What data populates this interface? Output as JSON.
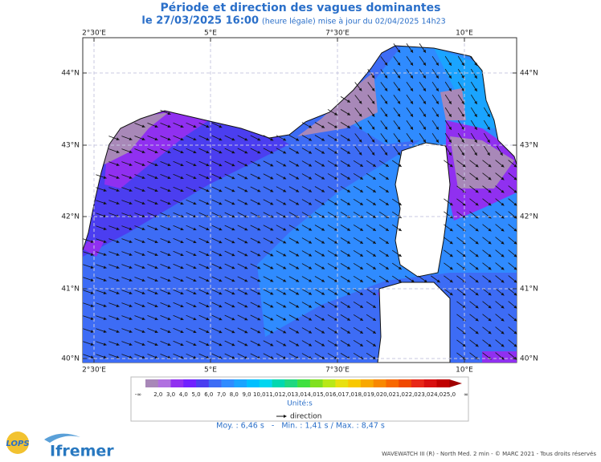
{
  "header": {
    "title": "Période et direction des vagues dominantes",
    "date": "le 27/03/2025 16:00",
    "note": "(heure légale) mise à jour du 02/04/2025 14h23"
  },
  "map": {
    "lon_labels": [
      "2°30'E",
      "5°E",
      "7°30'E",
      "10°E"
    ],
    "lat_labels": [
      "44°N",
      "43°N",
      "42°N",
      "41°N",
      "40°N"
    ]
  },
  "legend": {
    "low": "-∞",
    "high": "∞",
    "labels": [
      "2,0",
      "3,0",
      "4,0",
      "5,0",
      "6,0",
      "7,0",
      "8,0",
      "9,0",
      "10,0",
      "11,0",
      "12,0",
      "13,0",
      "14,0",
      "15,0",
      "16,0",
      "17,0",
      "18,0",
      "19,0",
      "20,0",
      "21,0",
      "22,0",
      "23,0",
      "24,0",
      "25,0"
    ],
    "colors": [
      "#a888b8",
      "#b070e0",
      "#9030f0",
      "#7020ff",
      "#4b3ef0",
      "#3d6cf5",
      "#2f8bff",
      "#1aa4ff",
      "#00bfff",
      "#00d6f0",
      "#00d8b0",
      "#20d880",
      "#40e040",
      "#80e020",
      "#b8e818",
      "#e8e010",
      "#f8c800",
      "#f8a800",
      "#f88800",
      "#f86800",
      "#f04800",
      "#e82818",
      "#d81010",
      "#c00000",
      "#a00000"
    ],
    "unit": "Unité:s",
    "direction": "direction"
  },
  "stats": "Moy. : 6,46 s   -   Min. : 1,41 s / Max. : 8,47 s",
  "footer": {
    "credit": "WAVEWATCH III (R) - North Med. 2 min - © MARC 2021 - Tous droits réservés",
    "logo_lops": "LOPS",
    "logo_ifremer": "Ifremer"
  }
}
